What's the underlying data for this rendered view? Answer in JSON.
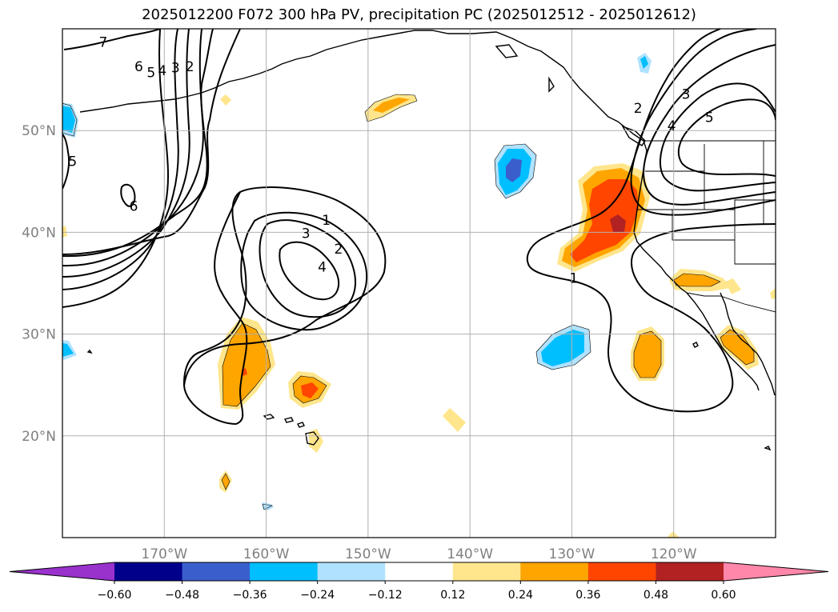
{
  "title": "2025012200 F072 300 hPa PV, precipitation PC (2025012512 - 2025012612)",
  "map": {
    "lon_range": [
      -180,
      -110
    ],
    "lat_range": [
      10,
      60
    ],
    "lon_ticks": [
      {
        "lon": -170,
        "label": "170°W"
      },
      {
        "lon": -160,
        "label": "160°W"
      },
      {
        "lon": -150,
        "label": "150°W"
      },
      {
        "lon": -140,
        "label": "140°W"
      },
      {
        "lon": -130,
        "label": "130°W"
      },
      {
        "lon": -120,
        "label": "120°W"
      }
    ],
    "lat_ticks": [
      {
        "lat": 20,
        "label": "20°N"
      },
      {
        "lat": 30,
        "label": "30°N"
      },
      {
        "lat": 40,
        "label": "40°N"
      },
      {
        "lat": 50,
        "label": "50°N"
      }
    ],
    "gridlines": true,
    "pv_contour_labels": [
      {
        "text": "7",
        "lon": -176,
        "lat": 58.7
      },
      {
        "text": "6",
        "lon": -172.5,
        "lat": 56.3
      },
      {
        "text": "5",
        "lon": -171.3,
        "lat": 55.7
      },
      {
        "text": "4",
        "lon": -170.2,
        "lat": 55.9
      },
      {
        "text": "3",
        "lon": -168.9,
        "lat": 56.2
      },
      {
        "text": "2",
        "lon": -167.5,
        "lat": 56.3
      },
      {
        "text": "5",
        "lon": -179,
        "lat": 47
      },
      {
        "text": "6",
        "lon": -173,
        "lat": 42.6
      },
      {
        "text": "1",
        "lon": -154.1,
        "lat": 41.2
      },
      {
        "text": "3",
        "lon": -156.1,
        "lat": 39.9
      },
      {
        "text": "2",
        "lon": -152.9,
        "lat": 38.4
      },
      {
        "text": "4",
        "lon": -154.5,
        "lat": 36.6
      },
      {
        "text": "1",
        "lon": -129.8,
        "lat": 35.5
      },
      {
        "text": "2",
        "lon": -123.5,
        "lat": 52.2
      },
      {
        "text": "3",
        "lon": -118.8,
        "lat": 53.6
      },
      {
        "text": "4",
        "lon": -120.2,
        "lat": 50.5
      },
      {
        "text": "5",
        "lon": -116.5,
        "lat": 51.3
      }
    ]
  },
  "colorbar": {
    "ticks": [
      "−0.60",
      "−0.48",
      "−0.36",
      "−0.24",
      "−0.12",
      "0.12",
      "0.24",
      "0.36",
      "0.48",
      "0.60"
    ],
    "colors": [
      "#9932cc",
      "#00008b",
      "#3a5fcd",
      "#00bfff",
      "#b0e2ff",
      "#ffffff",
      "#ffe68c",
      "#ffa500",
      "#ff4500",
      "#b22222",
      "#ff88aa"
    ]
  },
  "legend": {
    "extend": "both",
    "placement": "bottom"
  }
}
